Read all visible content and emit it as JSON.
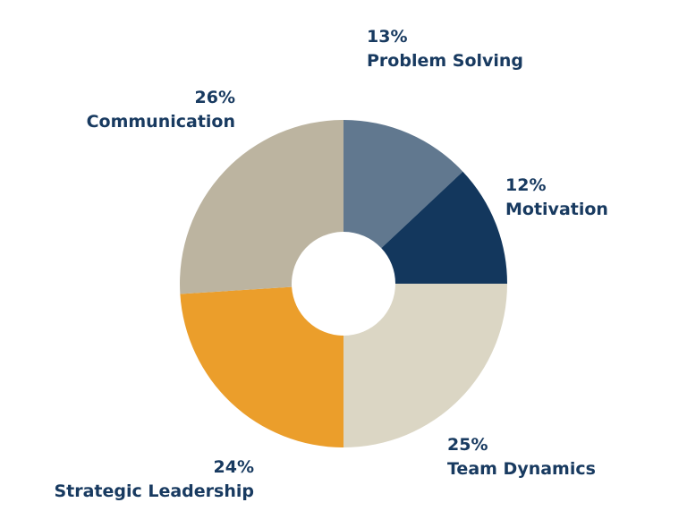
{
  "chart_data": {
    "type": "pie",
    "donut": true,
    "title": "",
    "start_angle_deg": 0,
    "direction": "clockwise",
    "center": [
      384,
      317
    ],
    "outer_radius": 183,
    "inner_radius": 58,
    "categories": [
      "Problem Solving",
      "Motivation",
      "Team Dynamics",
      "Strategic Leadership",
      "Communication"
    ],
    "values": [
      13,
      12,
      25,
      24,
      26
    ],
    "colors": [
      "#61788f",
      "#13375d",
      "#dbd6c4",
      "#eb9e2b",
      "#bcb4a0"
    ],
    "labels": [
      {
        "pct": "13%",
        "name": "Problem Solving"
      },
      {
        "pct": "12%",
        "name": "Motivation"
      },
      {
        "pct": "25%",
        "name": "Team Dynamics"
      },
      {
        "pct": "24%",
        "name": "Strategic Leadership"
      },
      {
        "pct": "26%",
        "name": "Communication"
      }
    ],
    "label_color": "#183a60",
    "legend": "none"
  }
}
